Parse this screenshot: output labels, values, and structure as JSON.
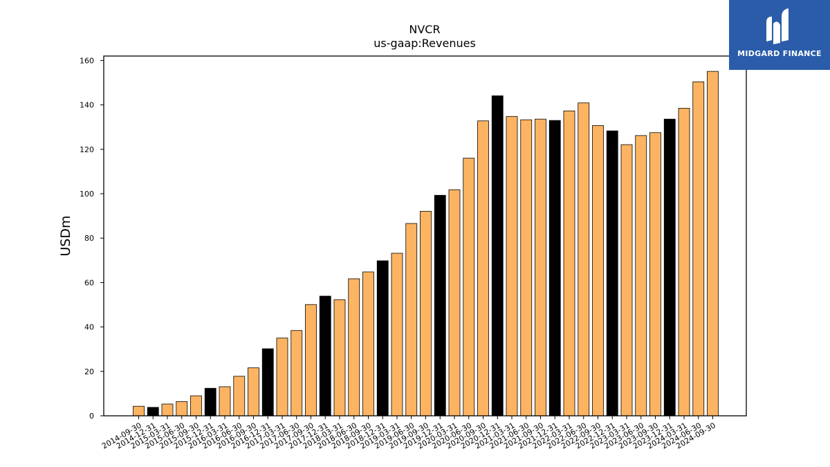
{
  "chart_data": {
    "type": "bar",
    "title": "NVCR",
    "subtitle": "us-gaap:Revenues",
    "ylabel": "USDm",
    "xlabel": "",
    "ylim": [
      0,
      162
    ],
    "yticks": [
      0,
      20,
      40,
      60,
      80,
      100,
      120,
      140,
      160
    ],
    "colors": {
      "default": "#fdb462",
      "highlight": "#000000",
      "edge": "#000000"
    },
    "categories": [
      "2014-09-30",
      "2014-12-31",
      "2015-03-31",
      "2015-06-30",
      "2015-09-30",
      "2015-12-31",
      "2016-03-31",
      "2016-06-30",
      "2016-09-30",
      "2016-12-31",
      "2017-03-31",
      "2017-06-30",
      "2017-09-30",
      "2017-12-31",
      "2018-03-31",
      "2018-06-30",
      "2018-09-30",
      "2018-12-31",
      "2019-03-31",
      "2019-06-30",
      "2019-09-30",
      "2019-12-31",
      "2020-03-31",
      "2020-06-30",
      "2020-09-30",
      "2020-12-31",
      "2021-03-31",
      "2021-06-30",
      "2021-09-30",
      "2021-12-31",
      "2022-03-31",
      "2022-06-30",
      "2022-09-30",
      "2022-12-31",
      "2023-03-31",
      "2023-06-30",
      "2023-09-30",
      "2023-12-31",
      "2024-03-31",
      "2024-06-30",
      "2024-09-30"
    ],
    "values": [
      4.3,
      3.8,
      5.3,
      6.4,
      9.0,
      12.4,
      13.1,
      17.8,
      21.6,
      30.2,
      35.0,
      38.4,
      50.1,
      53.9,
      52.3,
      61.7,
      64.8,
      69.8,
      73.2,
      86.6,
      92.1,
      99.3,
      101.8,
      116.0,
      132.8,
      144.1,
      134.8,
      133.3,
      133.6,
      133.0,
      137.3,
      140.9,
      130.7,
      128.3,
      122.1,
      126.2,
      127.5,
      133.6,
      138.5,
      150.4,
      155.1
    ],
    "highlight": [
      false,
      true,
      false,
      false,
      false,
      true,
      false,
      false,
      false,
      true,
      false,
      false,
      false,
      true,
      false,
      false,
      false,
      true,
      false,
      false,
      false,
      true,
      false,
      false,
      false,
      true,
      false,
      false,
      false,
      true,
      false,
      false,
      false,
      true,
      false,
      false,
      false,
      true,
      false,
      false,
      false
    ]
  },
  "logo": {
    "text": "MIDGARD FINANCE"
  }
}
